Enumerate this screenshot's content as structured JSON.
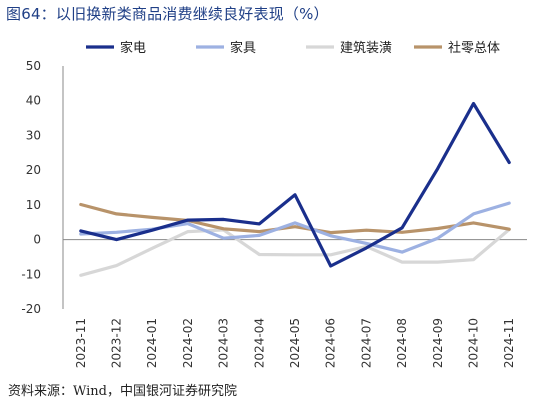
{
  "title": "图64：以旧换新类商品消费继续良好表现（%）",
  "source": "资料来源：Wind，中国银河证券研究院",
  "chart_data": {
    "type": "line",
    "title": "图64：以旧换新类商品消费继续良好表现（%）",
    "x": [
      "2023-11",
      "2023-12",
      "2024-01",
      "2024-02",
      "2024-03",
      "2024-04",
      "2024-05",
      "2024-06",
      "2024-07",
      "2024-08",
      "2024-09",
      "2024-10",
      "2024-11"
    ],
    "ylim": [
      -20,
      50
    ],
    "yticks": [
      -20,
      -10,
      0,
      10,
      20,
      30,
      40,
      50
    ],
    "grid": false,
    "legend_position": "top",
    "series": [
      {
        "name": "家电",
        "color": "#1a2f8c",
        "width": 3.2,
        "values": [
          2.5,
          0.0,
          2.7,
          5.6,
          5.8,
          4.5,
          12.9,
          -7.6,
          -2.4,
          3.4,
          20.5,
          39.2,
          22.2
        ]
      },
      {
        "name": "家具",
        "color": "#9db1e2",
        "width": 3.2,
        "values": [
          1.6,
          2.1,
          3.0,
          4.6,
          0.4,
          1.2,
          4.8,
          1.1,
          -1.1,
          -3.6,
          0.4,
          7.4,
          10.5
        ]
      },
      {
        "name": "建筑装潢",
        "color": "#d7d7d7",
        "width": 3.2,
        "values": [
          -10.3,
          -7.5,
          -2.5,
          2.3,
          2.8,
          -4.3,
          -4.4,
          -4.4,
          -2.0,
          -6.5,
          -6.5,
          -5.8,
          2.9
        ]
      },
      {
        "name": "社零总体",
        "color": "#b8936a",
        "width": 3.2,
        "values": [
          10.1,
          7.4,
          6.4,
          5.5,
          3.1,
          2.3,
          3.7,
          2.0,
          2.7,
          2.1,
          3.2,
          4.8,
          3.0
        ]
      }
    ]
  }
}
